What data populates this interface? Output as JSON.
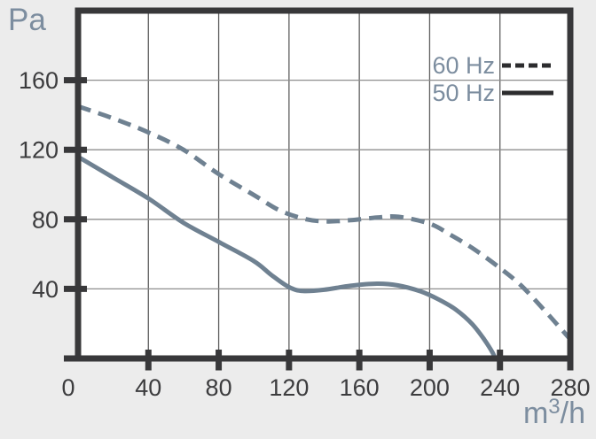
{
  "colors": {
    "page_bg": "#ececec",
    "plot_bg": "#ffffff",
    "axis": "#38383a",
    "tick_label": "#3c3c3e",
    "unit_label": "#7c8d9f",
    "curve": "#6f8191",
    "legend_sample": "#2c2c2e",
    "grid_vertical": "#5f5f5f",
    "grid_horizontal": "#8e8e8e"
  },
  "labels": {
    "y_unit": "Pa",
    "x_unit_base": "m",
    "x_unit_sup": "3",
    "x_unit_rest": "/h"
  },
  "chart_data": {
    "type": "line",
    "xlabel": "m³/h",
    "ylabel": "Pa",
    "xlim": [
      0,
      280
    ],
    "ylim": [
      0,
      200
    ],
    "x_ticks": [
      0,
      40,
      80,
      120,
      160,
      200,
      240,
      280
    ],
    "y_ticks": [
      40,
      80,
      120,
      160
    ],
    "grid": true,
    "legend_position": "top-right",
    "series": [
      {
        "name": "60 Hz",
        "line_style": "dashed",
        "points": [
          [
            0,
            145
          ],
          [
            20,
            138
          ],
          [
            40,
            130
          ],
          [
            60,
            120
          ],
          [
            80,
            106
          ],
          [
            100,
            94
          ],
          [
            115,
            85
          ],
          [
            130,
            80
          ],
          [
            142,
            78.8
          ],
          [
            155,
            79.5
          ],
          [
            170,
            81
          ],
          [
            182,
            81.5
          ],
          [
            200,
            77.5
          ],
          [
            212,
            71
          ],
          [
            225,
            63
          ],
          [
            240,
            52
          ],
          [
            252,
            42
          ],
          [
            265,
            28
          ],
          [
            273,
            19
          ],
          [
            280,
            11
          ]
        ]
      },
      {
        "name": "50 Hz",
        "line_style": "solid",
        "points": [
          [
            0,
            116
          ],
          [
            20,
            104
          ],
          [
            40,
            92
          ],
          [
            60,
            78
          ],
          [
            80,
            67
          ],
          [
            100,
            56
          ],
          [
            110,
            48
          ],
          [
            120,
            41
          ],
          [
            128,
            38.8
          ],
          [
            140,
            39.5
          ],
          [
            155,
            41.8
          ],
          [
            170,
            43
          ],
          [
            182,
            42
          ],
          [
            195,
            38.5
          ],
          [
            205,
            34
          ],
          [
            215,
            28
          ],
          [
            224,
            20
          ],
          [
            231,
            11
          ],
          [
            236,
            3
          ],
          [
            237,
            0
          ]
        ]
      }
    ]
  }
}
